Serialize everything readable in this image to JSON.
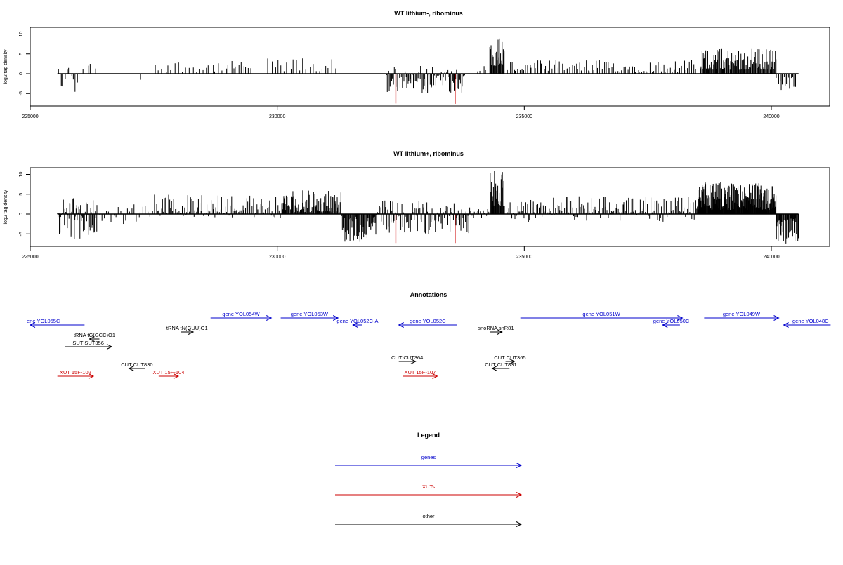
{
  "chart_data": [
    {
      "type": "bar",
      "title": "WT lithium-, ribominus",
      "ylabel": "log2 tag density",
      "xlabel": "",
      "xlim": [
        225000,
        241500
      ],
      "ylim": [
        -8,
        12
      ],
      "x_ticks": [
        225000,
        230000,
        235000,
        240000
      ],
      "y_ticks": [
        -5,
        0,
        5,
        10
      ],
      "x_tick_labels": [
        "225000",
        "230000",
        "235000",
        "240000"
      ],
      "y_tick_labels": [
        "-5",
        "0",
        "5",
        "10"
      ],
      "baseline_range": [
        225550,
        240550
      ],
      "colors": {
        "bars": "#000000",
        "highlight": "#cc0000"
      },
      "highlight_bars": [
        {
          "x": 232400,
          "value": -7.5
        },
        {
          "x": 233600,
          "value": -7.6
        }
      ],
      "segments": [
        {
          "from": 225550,
          "to": 225900,
          "count": 8,
          "min": -5,
          "max": 2,
          "density": 0.5
        },
        {
          "from": 225900,
          "to": 226000,
          "count": 3,
          "min": -5,
          "max": -1,
          "density": 0
        },
        {
          "from": 226050,
          "to": 226350,
          "count": 4,
          "min": -3,
          "max": 3,
          "density": 0.6
        },
        {
          "from": 227200,
          "to": 227250,
          "count": 1,
          "min": -2,
          "max": -1.5,
          "density": 0
        },
        {
          "from": 227500,
          "to": 229000,
          "count": 22,
          "min": 0.5,
          "max": 3.5,
          "density": 1
        },
        {
          "from": 229000,
          "to": 229500,
          "count": 10,
          "min": 1,
          "max": 3.2,
          "density": 1
        },
        {
          "from": 229800,
          "to": 231200,
          "count": 22,
          "min": 0.5,
          "max": 4,
          "density": 1
        },
        {
          "from": 232200,
          "to": 233800,
          "count": 80,
          "min": -5,
          "max": 2,
          "density": 0.15
        },
        {
          "from": 234050,
          "to": 234250,
          "count": 4,
          "min": 0.5,
          "max": 2,
          "density": 1
        },
        {
          "from": 234300,
          "to": 234600,
          "count": 28,
          "min": 2,
          "max": 10,
          "density": 1
        },
        {
          "from": 234650,
          "to": 238500,
          "count": 95,
          "min": 0.5,
          "max": 3.5,
          "density": 1
        },
        {
          "from": 238550,
          "to": 240100,
          "count": 120,
          "min": 1,
          "max": 6.5,
          "density": 1
        },
        {
          "from": 240100,
          "to": 240500,
          "count": 14,
          "min": -4.5,
          "max": -0.5,
          "density": 0
        }
      ]
    },
    {
      "type": "bar",
      "title": "WT lithium+, ribominus",
      "ylabel": "log2 tag density",
      "xlabel": "",
      "xlim": [
        225000,
        241500
      ],
      "ylim": [
        -8,
        12
      ],
      "x_ticks": [
        225000,
        230000,
        235000,
        240000
      ],
      "y_ticks": [
        -5,
        0,
        5,
        10
      ],
      "x_tick_labels": [
        "225000",
        "230000",
        "235000",
        "240000"
      ],
      "y_tick_labels": [
        "-5",
        "0",
        "5",
        "10"
      ],
      "baseline_range": [
        225550,
        240550
      ],
      "colors": {
        "bars": "#000000",
        "highlight": "#cc0000"
      },
      "highlight_bars": [
        {
          "x": 232400,
          "value": -7.3
        },
        {
          "x": 233600,
          "value": -7.3
        }
      ],
      "segments": [
        {
          "from": 225550,
          "to": 226350,
          "count": 60,
          "min": -6.5,
          "max": 4,
          "density": 0.45
        },
        {
          "from": 226350,
          "to": 227500,
          "count": 25,
          "min": -2.5,
          "max": 3,
          "density": 0.7
        },
        {
          "from": 227500,
          "to": 230100,
          "count": 110,
          "min": -1,
          "max": 5,
          "density": 0.9
        },
        {
          "from": 230100,
          "to": 231300,
          "count": 90,
          "min": 0.5,
          "max": 6,
          "density": 1
        },
        {
          "from": 231300,
          "to": 232000,
          "count": 55,
          "min": -7,
          "max": -0.5,
          "density": 0
        },
        {
          "from": 232000,
          "to": 233900,
          "count": 110,
          "min": -5,
          "max": 3.5,
          "density": 0.45
        },
        {
          "from": 233900,
          "to": 234300,
          "count": 14,
          "min": -1,
          "max": 3,
          "density": 0.7
        },
        {
          "from": 234300,
          "to": 234600,
          "count": 30,
          "min": 2,
          "max": 11,
          "density": 1
        },
        {
          "from": 234650,
          "to": 238500,
          "count": 170,
          "min": -2,
          "max": 4.5,
          "density": 0.85
        },
        {
          "from": 238500,
          "to": 240100,
          "count": 220,
          "min": 1,
          "max": 8,
          "density": 1
        },
        {
          "from": 240100,
          "to": 240550,
          "count": 40,
          "min": -7.5,
          "max": -1,
          "density": 0
        }
      ]
    },
    {
      "type": "annotation_track",
      "title": "Annotations",
      "features": [
        {
          "label": "ene YOL055C",
          "category": "genes",
          "strand": "-",
          "start": 225000,
          "end": 226100
        },
        {
          "label": "tRNA tG(GCC)O1",
          "category": "other",
          "strand": "-",
          "start": 226200,
          "end": 226400
        },
        {
          "label": "SUT SUT356",
          "category": "other",
          "strand": "+",
          "start": 225700,
          "end": 226650
        },
        {
          "label": "XUT 15F-102",
          "category": "XUTs",
          "strand": "+",
          "start": 225550,
          "end": 226280
        },
        {
          "label": "CUT CUT830",
          "category": "other",
          "strand": "-",
          "start": 227000,
          "end": 227320
        },
        {
          "label": "XUT 15F-104",
          "category": "XUTs",
          "strand": "+",
          "start": 227600,
          "end": 228000
        },
        {
          "label": "tRNA tN(GUU)O1",
          "category": "other",
          "strand": "+",
          "start": 228050,
          "end": 228300
        },
        {
          "label": "gene YOL054W",
          "category": "genes",
          "strand": "+",
          "start": 228650,
          "end": 229880
        },
        {
          "label": "gene YOL053W",
          "category": "genes",
          "strand": "+",
          "start": 230070,
          "end": 231230
        },
        {
          "label": "gene YOL052C-A",
          "category": "genes",
          "strand": "-",
          "start": 231530,
          "end": 231720
        },
        {
          "label": "gene YOL052C",
          "category": "genes",
          "strand": "-",
          "start": 232460,
          "end": 233630
        },
        {
          "label": "CUT CUT364",
          "category": "other",
          "strand": "+",
          "start": 232460,
          "end": 232800
        },
        {
          "label": "XUT 15F-107",
          "category": "XUTs",
          "strand": "+",
          "start": 232540,
          "end": 233240
        },
        {
          "label": "snoRNA snR81",
          "category": "other",
          "strand": "+",
          "start": 234300,
          "end": 234550
        },
        {
          "label": "CUT CUT365",
          "category": "other",
          "strand": "+",
          "start": 234620,
          "end": 234800
        },
        {
          "label": "CUT CUT831",
          "category": "other",
          "strand": "-",
          "start": 234350,
          "end": 234700
        },
        {
          "label": "gene YOL051W",
          "category": "genes",
          "strand": "+",
          "start": 234920,
          "end": 238200
        },
        {
          "label": "gene YOL050C",
          "category": "genes",
          "strand": "-",
          "start": 237800,
          "end": 238150
        },
        {
          "label": "gene YOL049W",
          "category": "genes",
          "strand": "+",
          "start": 238640,
          "end": 240150
        },
        {
          "label": "gene YOL048C",
          "category": "genes",
          "strand": "-",
          "start": 240250,
          "end": 241200
        }
      ],
      "colors": {
        "genes": "#0000cc",
        "XUTs": "#cc0000",
        "other": "#000000"
      }
    }
  ],
  "legend": {
    "title": "Legend",
    "entries": [
      {
        "label": "genes",
        "color": "#0000cc"
      },
      {
        "label": "XUTs",
        "color": "#cc0000"
      },
      {
        "label": "other",
        "color": "#000000"
      }
    ]
  }
}
